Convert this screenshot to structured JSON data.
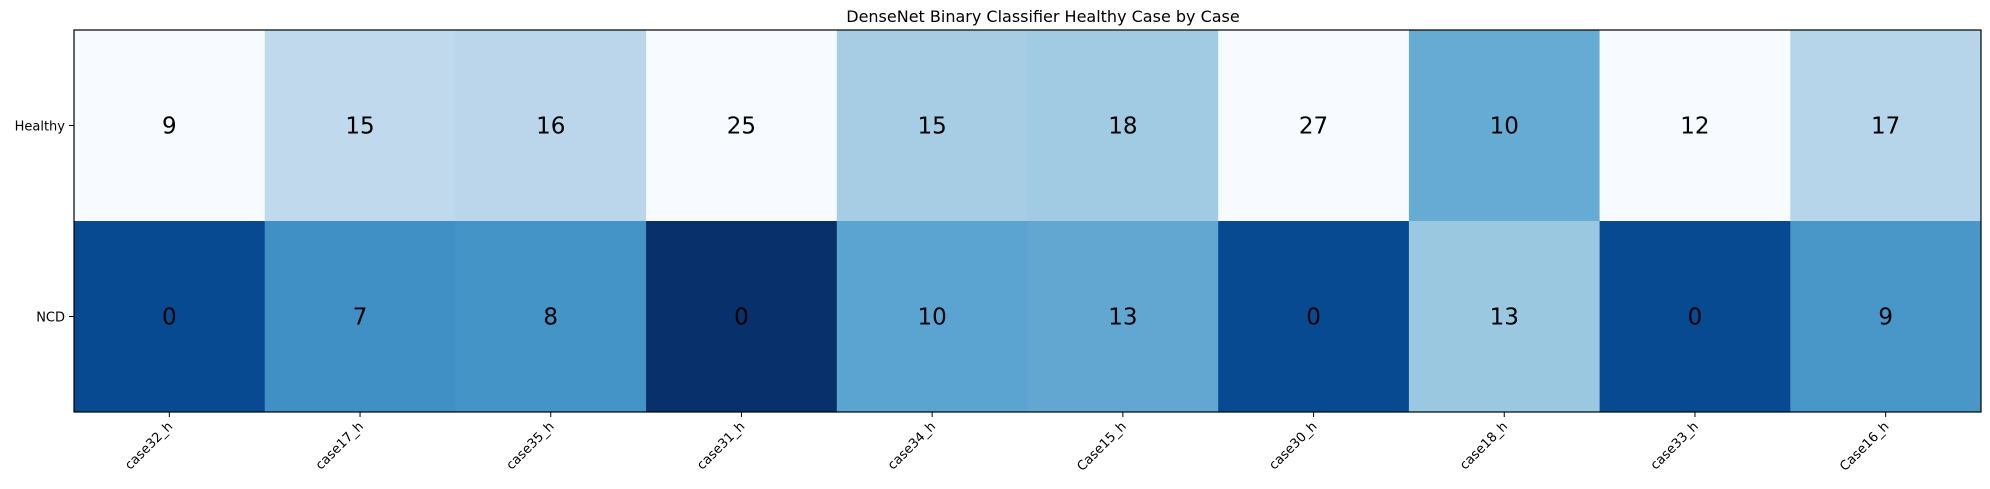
{
  "chart_data": {
    "type": "heatmap",
    "title": "DenseNet Binary Classifier Healthy Case by Case",
    "x_categories": [
      "case32_h",
      "case17_h",
      "case35_h",
      "case31_h",
      "case34_h",
      "Case15_h",
      "case30_h",
      "case18_h",
      "case33_h",
      "Case16_h"
    ],
    "y_categories": [
      "Healthy",
      "NCD"
    ],
    "values": [
      [
        9,
        15,
        16,
        25,
        15,
        18,
        27,
        10,
        12,
        17
      ],
      [
        0,
        7,
        8,
        0,
        10,
        13,
        0,
        13,
        0,
        9
      ]
    ],
    "colormap": "Blues",
    "grid": false
  }
}
